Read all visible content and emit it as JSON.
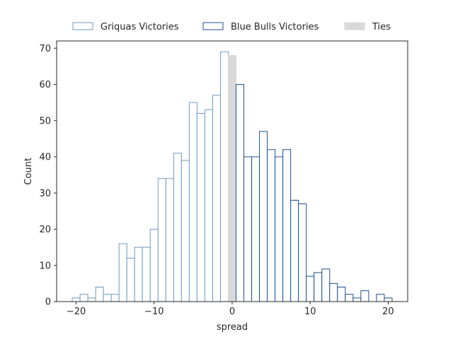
{
  "chart_data": {
    "type": "bar",
    "title": "",
    "xlabel": "spread",
    "ylabel": "Count",
    "xlim": [
      -22.5,
      22.5
    ],
    "ylim": [
      0,
      72
    ],
    "xticks": [
      -20,
      -10,
      0,
      10,
      20
    ],
    "yticks": [
      0,
      10,
      20,
      30,
      40,
      50,
      60,
      70
    ],
    "bin_width": 1,
    "grid": false,
    "legend_position": "top-center",
    "series": [
      {
        "name": "Griquas Victories",
        "color": "#6d9ac4",
        "fill": "#ffffff",
        "x": [
          -20,
          -19,
          -18,
          -17,
          -16,
          -15,
          -14,
          -13,
          -12,
          -11,
          -10,
          -9,
          -8,
          -7,
          -6,
          -5,
          -4,
          -3,
          -2,
          -1
        ],
        "values": [
          1,
          2,
          1,
          4,
          2,
          2,
          16,
          12,
          15,
          15,
          20,
          34,
          34,
          41,
          39,
          55,
          52,
          53,
          57,
          69
        ]
      },
      {
        "name": "Ties",
        "color": "#d9d9d9",
        "fill": "#d9d9d9",
        "x": [
          0
        ],
        "values": [
          68
        ]
      },
      {
        "name": "Blue Bulls Victories",
        "color": "#1f4e91",
        "fill": "#ffffff",
        "x": [
          1,
          2,
          3,
          4,
          5,
          6,
          7,
          8,
          9,
          10,
          11,
          12,
          13,
          14,
          15,
          16,
          17,
          18,
          19,
          20
        ],
        "values": [
          60,
          40,
          40,
          47,
          42,
          40,
          42,
          28,
          27,
          7,
          8,
          9,
          5,
          4,
          2,
          1,
          3,
          0,
          2,
          1
        ]
      }
    ]
  }
}
